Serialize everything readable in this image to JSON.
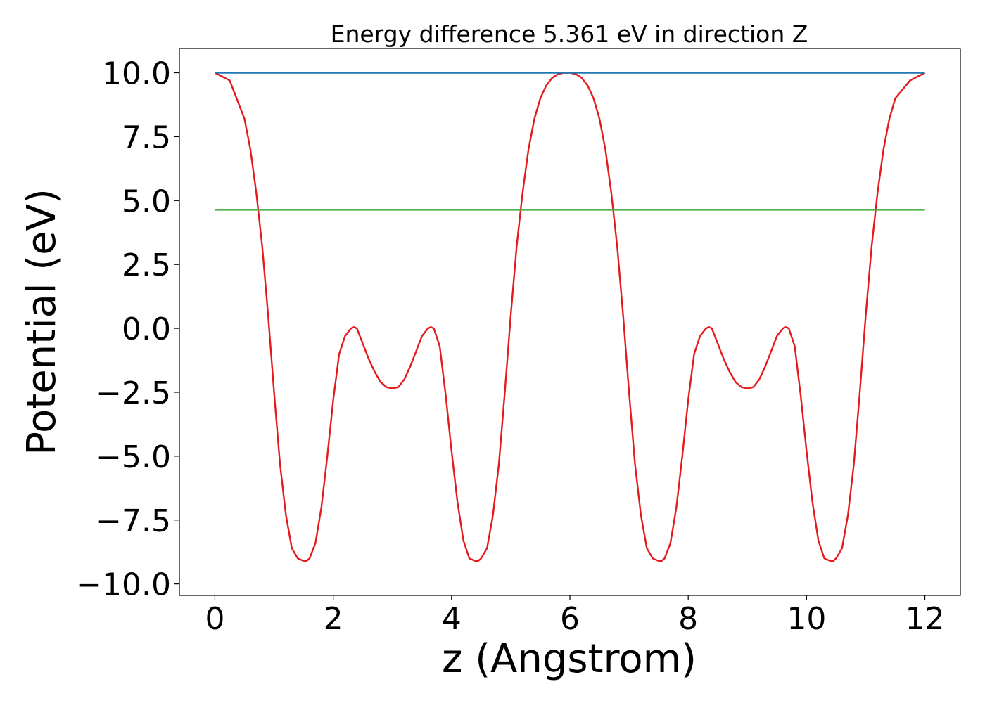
{
  "chart_data": {
    "type": "line",
    "title": "Energy difference 5.361 eV in direction Z",
    "xlabel": "z (Angstrom)",
    "ylabel": "Potential (eV)",
    "xlim": [
      -0.6,
      12.6
    ],
    "ylim": [
      -10.45,
      9.95
    ],
    "x_ticks": [
      0,
      2,
      4,
      6,
      8,
      10,
      12
    ],
    "x_tick_labels": [
      "0",
      "2",
      "4",
      "6",
      "8",
      "10",
      "12"
    ],
    "y_ticks": [
      10.0,
      7.5,
      5.0,
      2.5,
      0.0,
      -2.5,
      -5.0,
      -7.5,
      -10.0
    ],
    "y_tick_labels": [
      "10.0",
      "7.5",
      "5.0",
      "2.5",
      "0.0",
      "−2.5",
      "−5.0",
      "−7.5",
      "−10.0"
    ],
    "grid": false,
    "legend": "none",
    "series": [
      {
        "color": "#e41a1c",
        "x": [
          0,
          0.25,
          0.5,
          0.6,
          0.7,
          0.8,
          0.9,
          1.0,
          1.1,
          1.2,
          1.3,
          1.4,
          1.5,
          1.55,
          1.6,
          1.7,
          1.8,
          1.9,
          2.0,
          2.1,
          2.2,
          2.3,
          2.35,
          2.4,
          2.5,
          2.6,
          2.7,
          2.8,
          2.9,
          3.0,
          3.1,
          3.2,
          3.3,
          3.4,
          3.5,
          3.6,
          3.65,
          3.7,
          3.8,
          3.9,
          4.0,
          4.1,
          4.2,
          4.3,
          4.4,
          4.45,
          4.5,
          4.6,
          4.7,
          4.8,
          4.9,
          5.0,
          5.1,
          5.2,
          5.3,
          5.4,
          5.5,
          5.6,
          5.7,
          5.8,
          5.9,
          6.0,
          6.1,
          6.2,
          6.3,
          6.4,
          6.5,
          6.6,
          6.7,
          6.8,
          6.9,
          7.0,
          7.1,
          7.2,
          7.3,
          7.4,
          7.5,
          7.55,
          7.6,
          7.7,
          7.8,
          7.9,
          8.0,
          8.1,
          8.2,
          8.3,
          8.35,
          8.4,
          8.5,
          8.6,
          8.7,
          8.8,
          8.9,
          9.0,
          9.1,
          9.2,
          9.3,
          9.4,
          9.5,
          9.6,
          9.65,
          9.7,
          9.8,
          9.9,
          10.0,
          10.1,
          10.2,
          10.3,
          10.4,
          10.45,
          10.5,
          10.6,
          10.7,
          10.8,
          10.9,
          11.0,
          11.1,
          11.2,
          11.3,
          11.4,
          11.5,
          11.75,
          12.0
        ],
        "y": [
          10.0,
          9.7,
          8.2,
          7.0,
          5.3,
          3.2,
          0.5,
          -2.5,
          -5.3,
          -7.3,
          -8.6,
          -9.0,
          -9.1,
          -9.1,
          -9.0,
          -8.4,
          -7.0,
          -5.0,
          -2.8,
          -1.0,
          -0.3,
          0.0,
          0.05,
          0.0,
          -0.6,
          -1.2,
          -1.7,
          -2.1,
          -2.3,
          -2.35,
          -2.3,
          -2.0,
          -1.5,
          -0.9,
          -0.3,
          0.0,
          0.05,
          0.0,
          -0.7,
          -2.6,
          -4.8,
          -6.8,
          -8.3,
          -9.0,
          -9.1,
          -9.1,
          -9.0,
          -8.6,
          -7.3,
          -5.3,
          -2.5,
          0.5,
          3.2,
          5.3,
          7.0,
          8.2,
          9.0,
          9.5,
          9.8,
          9.95,
          10.0,
          10.0,
          9.95,
          9.8,
          9.5,
          9.0,
          8.2,
          7.0,
          5.3,
          3.2,
          0.5,
          -2.5,
          -5.3,
          -7.3,
          -8.6,
          -9.0,
          -9.1,
          -9.1,
          -9.0,
          -8.4,
          -7.0,
          -5.0,
          -2.8,
          -1.0,
          -0.3,
          0.0,
          0.05,
          0.0,
          -0.6,
          -1.2,
          -1.7,
          -2.1,
          -2.3,
          -2.35,
          -2.3,
          -2.0,
          -1.5,
          -0.9,
          -0.3,
          0.0,
          0.05,
          0.0,
          -0.7,
          -2.6,
          -4.8,
          -6.8,
          -8.3,
          -9.0,
          -9.1,
          -9.1,
          -9.0,
          -8.6,
          -7.3,
          -5.3,
          -2.5,
          0.5,
          3.2,
          5.3,
          7.0,
          8.2,
          9.0,
          9.7,
          10.0
        ]
      },
      {
        "color": "#1f77b4",
        "x": [
          0,
          12
        ],
        "y": [
          10.0,
          10.0
        ]
      },
      {
        "color": "#4daf4a",
        "x": [
          0,
          12
        ],
        "y": [
          4.639,
          4.639
        ]
      }
    ]
  }
}
